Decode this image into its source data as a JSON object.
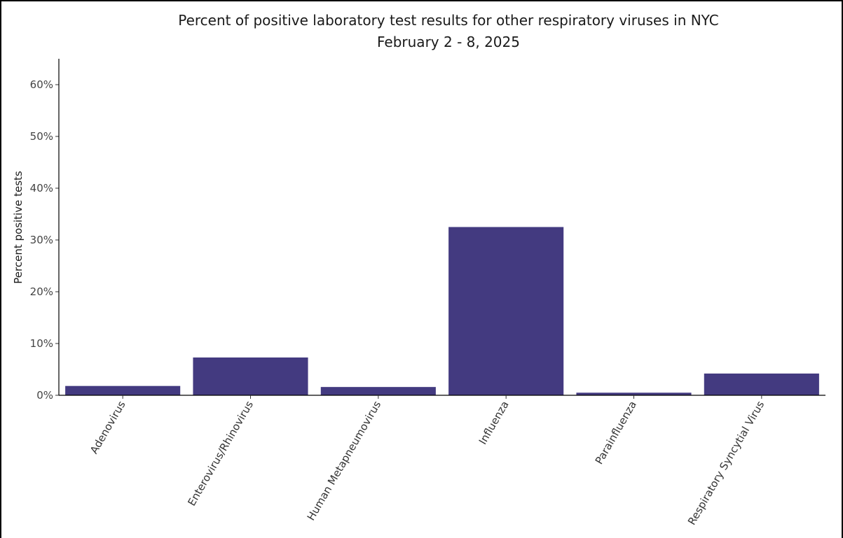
{
  "chart_data": {
    "type": "bar",
    "title": "Percent of positive laboratory test results for other respiratory viruses in NYC",
    "subtitle": "February 2 - 8, 2025",
    "xlabel": "",
    "ylabel": "Percent positive tests",
    "categories": [
      "Adenovirus",
      "Enterovirus/Rhinovirus",
      "Human Metapneumovirus",
      "Influenza",
      "Parainfluenza",
      "Respiratory Syncytial Virus"
    ],
    "values": [
      1.8,
      7.3,
      1.6,
      32.5,
      0.5,
      4.2
    ],
    "ylim": [
      0,
      65
    ],
    "yticks": [
      0,
      10,
      20,
      30,
      40,
      50,
      60
    ],
    "ytick_labels": [
      "0%",
      "10%",
      "20%",
      "30%",
      "40%",
      "50%",
      "60%"
    ],
    "bar_color": "#433a80",
    "grid": false,
    "legend": "none"
  }
}
